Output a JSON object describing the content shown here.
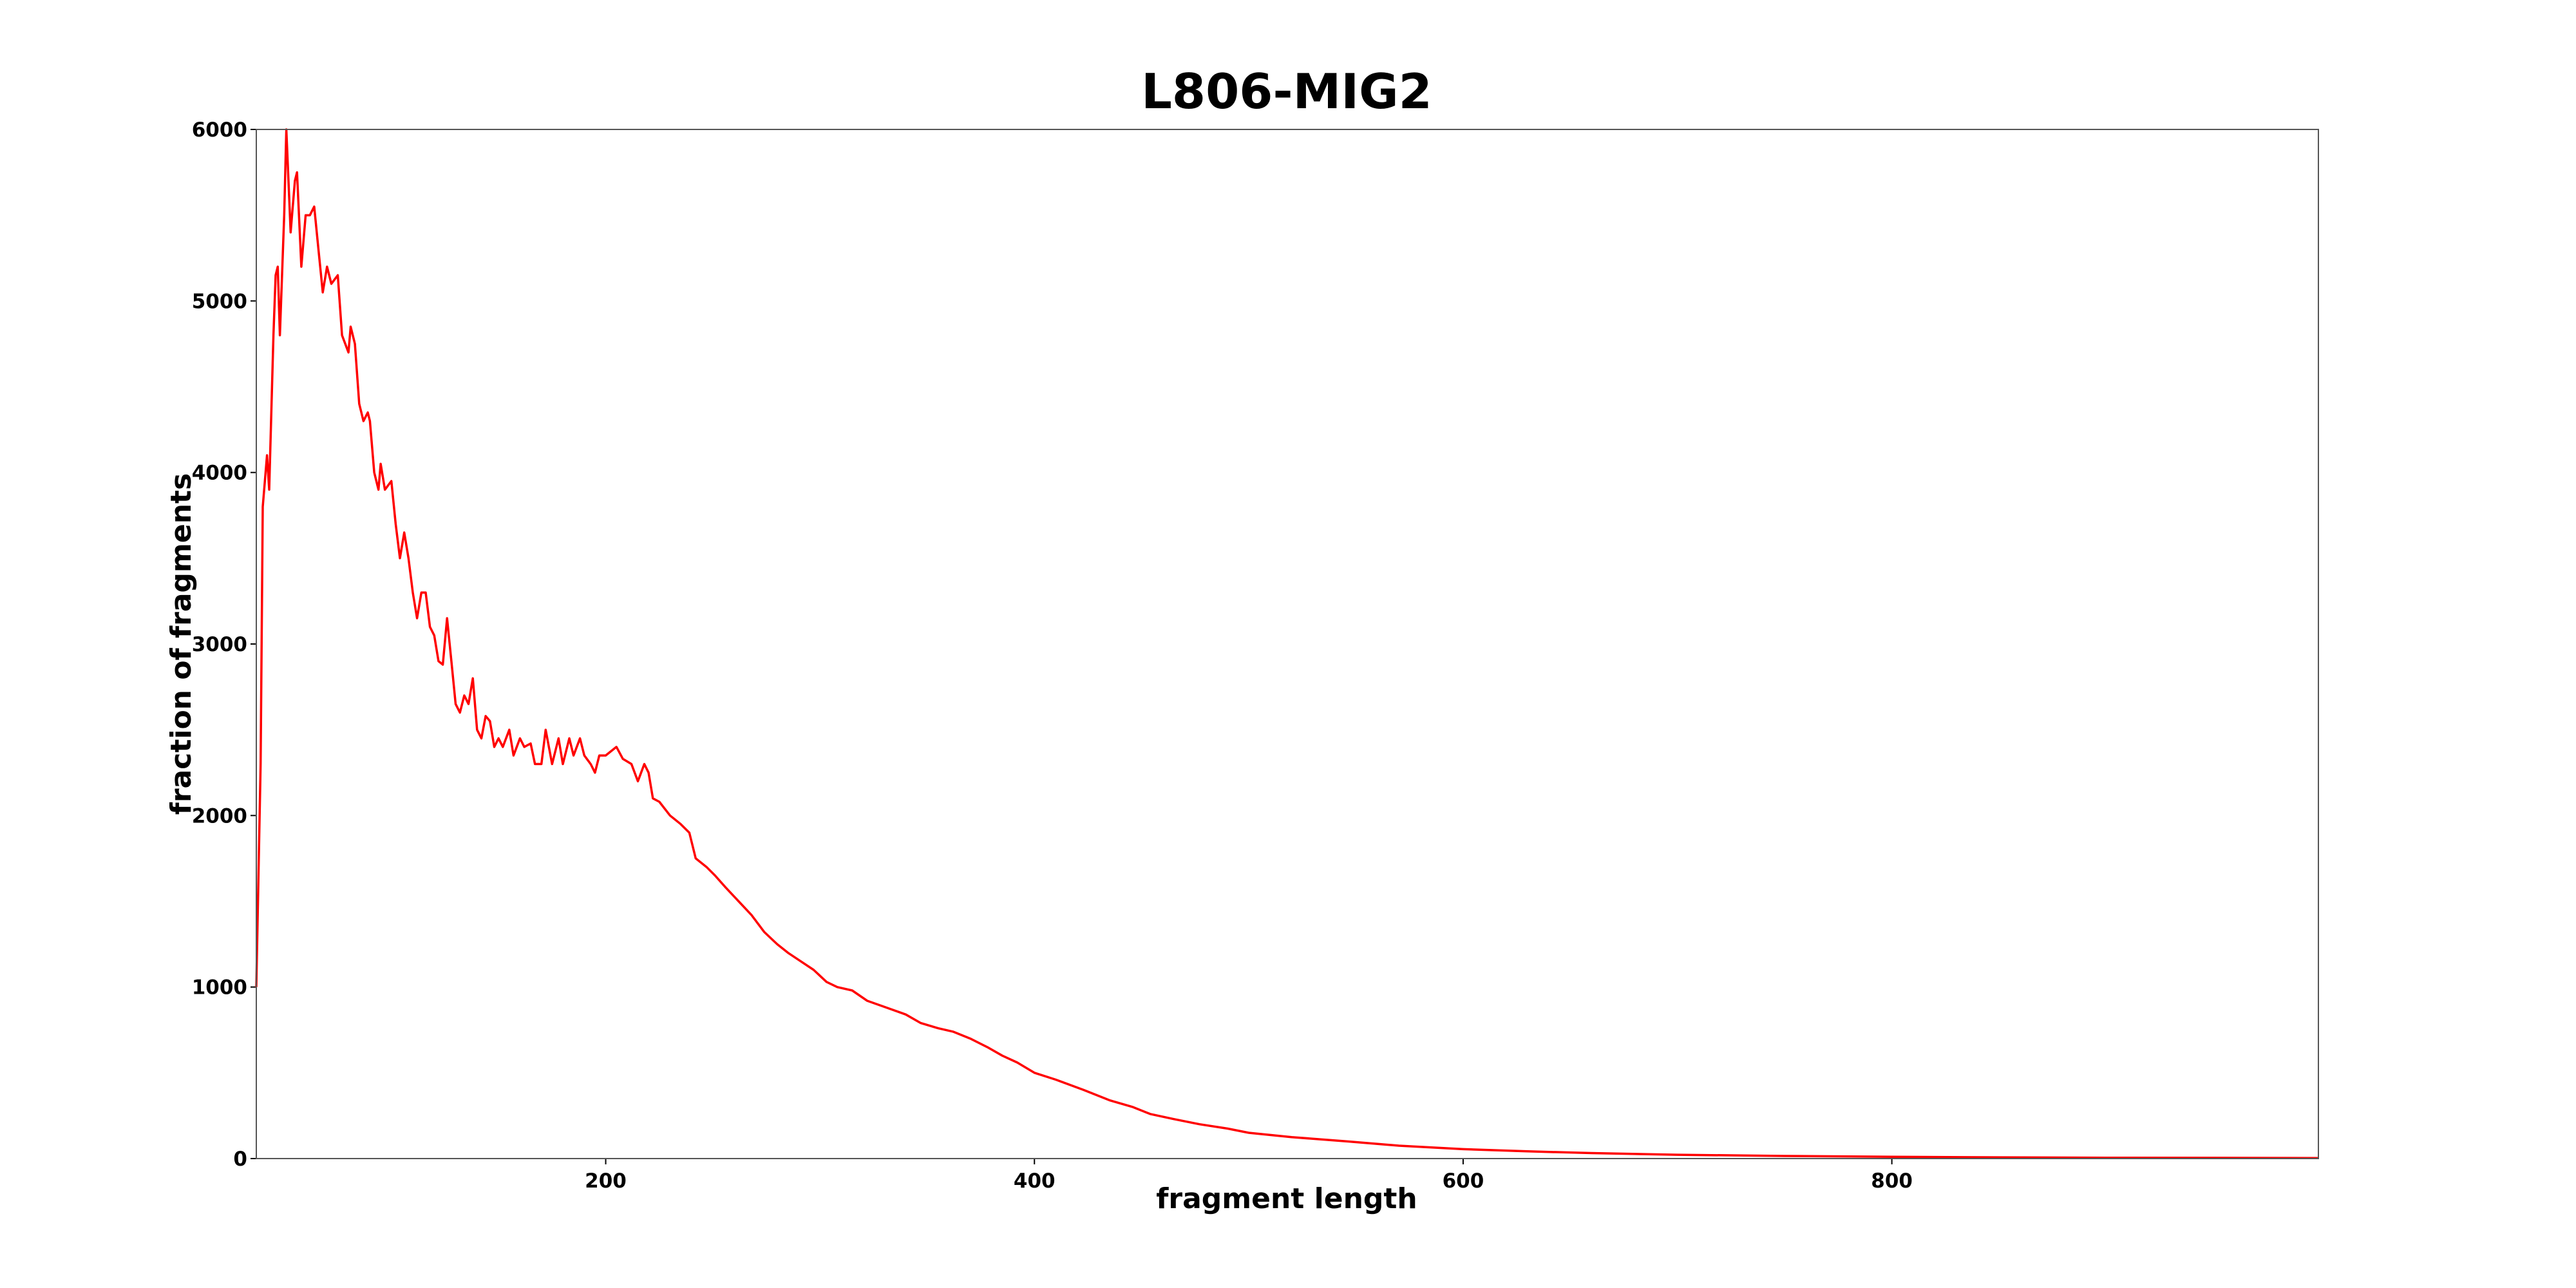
{
  "chart_data": {
    "type": "line",
    "title": "L806-MIG2",
    "xlabel": "fragment length",
    "ylabel": "fraction of fragments",
    "x": [
      37,
      39,
      40,
      42,
      43,
      45,
      46,
      47,
      48,
      50,
      51,
      53,
      55,
      56,
      58,
      60,
      62,
      64,
      66,
      68,
      70,
      72,
      75,
      77,
      80,
      81,
      83,
      85,
      87,
      89,
      90,
      92,
      94,
      95,
      97,
      100,
      102,
      104,
      106,
      108,
      110,
      112,
      114,
      116,
      118,
      120,
      122,
      124,
      126,
      128,
      130,
      132,
      134,
      136,
      138,
      140,
      142,
      144,
      146,
      148,
      150,
      152,
      155,
      157,
      160,
      162,
      165,
      167,
      170,
      172,
      175,
      178,
      180,
      183,
      185,
      188,
      190,
      193,
      195,
      197,
      200,
      205,
      208,
      212,
      215,
      218,
      220,
      222,
      225,
      230,
      235,
      239,
      242,
      247,
      251,
      256,
      262,
      268,
      274,
      280,
      285,
      291,
      297,
      303,
      308,
      315,
      322,
      331,
      340,
      347,
      355,
      362,
      370,
      378,
      385,
      392,
      400,
      410,
      423,
      435,
      446,
      454,
      465,
      477,
      490,
      500,
      520,
      546,
      570,
      600,
      630,
      660,
      700,
      750,
      800,
      850,
      900,
      950,
      999
    ],
    "series": [
      {
        "name": "L806-MIG2",
        "color": "#ff0000",
        "values": [
          1000,
          2300,
          3800,
          4100,
          3900,
          4800,
          5150,
          5200,
          4800,
          5500,
          6000,
          5400,
          5700,
          5750,
          5200,
          5500,
          5500,
          5550,
          5300,
          5050,
          5200,
          5100,
          5150,
          4800,
          4700,
          4850,
          4750,
          4400,
          4300,
          4350,
          4300,
          4000,
          3900,
          4050,
          3900,
          3950,
          3700,
          3500,
          3650,
          3500,
          3300,
          3150,
          3300,
          3300,
          3100,
          3050,
          2900,
          2880,
          3150,
          2900,
          2650,
          2600,
          2700,
          2650,
          2800,
          2500,
          2450,
          2580,
          2550,
          2400,
          2450,
          2400,
          2500,
          2350,
          2450,
          2400,
          2420,
          2300,
          2300,
          2500,
          2300,
          2450,
          2300,
          2450,
          2350,
          2450,
          2350,
          2300,
          2250,
          2350,
          2350,
          2400,
          2330,
          2300,
          2200,
          2300,
          2250,
          2100,
          2080,
          2000,
          1950,
          1900,
          1750,
          1700,
          1650,
          1580,
          1500,
          1420,
          1320,
          1250,
          1200,
          1150,
          1100,
          1030,
          1000,
          980,
          920,
          880,
          840,
          790,
          760,
          740,
          700,
          650,
          600,
          560,
          500,
          460,
          400,
          340,
          300,
          260,
          230,
          200,
          175,
          150,
          125,
          100,
          75,
          55,
          42,
          32,
          22,
          15,
          10,
          7,
          5,
          4,
          3
        ]
      }
    ],
    "xlim": [
      37,
      999
    ],
    "ylim": [
      0,
      6000
    ],
    "xticks": [
      200,
      400,
      600,
      800
    ],
    "yticks": [
      0,
      1000,
      2000,
      3000,
      4000,
      5000,
      6000
    ]
  }
}
